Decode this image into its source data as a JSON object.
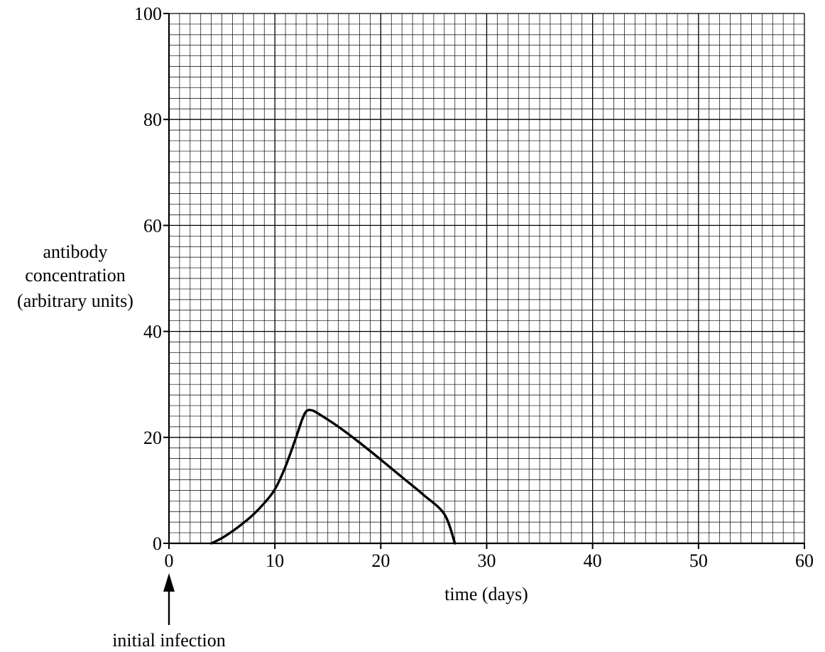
{
  "chart_data": {
    "type": "line",
    "title": "",
    "xlabel": "time (days)",
    "ylabel": [
      "antibody",
      "concentration",
      "(arbitrary units)"
    ],
    "xlim": [
      0,
      60
    ],
    "ylim": [
      0,
      100
    ],
    "x_ticks": [
      0,
      10,
      20,
      30,
      40,
      50,
      60
    ],
    "y_ticks": [
      0,
      20,
      40,
      60,
      80,
      100
    ],
    "x_minor_step": 1,
    "y_minor_step": 2,
    "grid": true,
    "annotations": [
      {
        "text": "initial infection",
        "x": 0,
        "arrow": "up"
      }
    ],
    "series": [
      {
        "color": "#000000",
        "points": [
          [
            4,
            0
          ],
          [
            5,
            1
          ],
          [
            6,
            2.3
          ],
          [
            7,
            3.8
          ],
          [
            8,
            5.5
          ],
          [
            9,
            7.6
          ],
          [
            10,
            10.2
          ],
          [
            11,
            14.5
          ],
          [
            12,
            20
          ],
          [
            12.6,
            23.5
          ],
          [
            13,
            25
          ],
          [
            13.5,
            25.1
          ],
          [
            14,
            24.6
          ],
          [
            16,
            22
          ],
          [
            18,
            19
          ],
          [
            20,
            15.8
          ],
          [
            22,
            12.5
          ],
          [
            24,
            9.2
          ],
          [
            26,
            5.5
          ],
          [
            27,
            0
          ]
        ]
      }
    ]
  }
}
